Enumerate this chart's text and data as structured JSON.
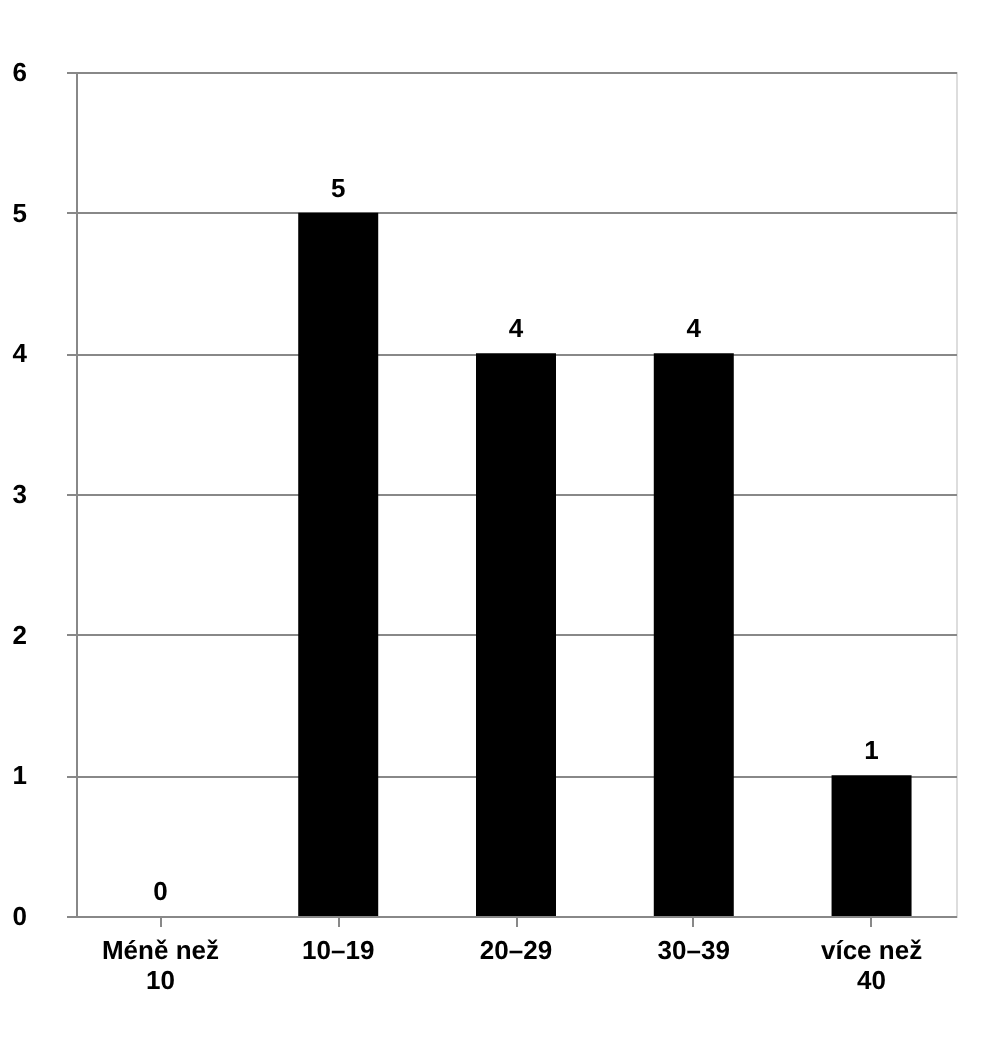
{
  "chart_data": {
    "type": "bar",
    "categories": [
      "Méně než 10",
      "10–19",
      "20–29",
      "30–39",
      "více než 40"
    ],
    "values": [
      0,
      5,
      4,
      4,
      1
    ],
    "color": "#000000",
    "ylim": [
      0,
      6
    ],
    "yticks": [
      0,
      1,
      2,
      3,
      4,
      5,
      6
    ],
    "grid": "y",
    "data_labels": true
  }
}
